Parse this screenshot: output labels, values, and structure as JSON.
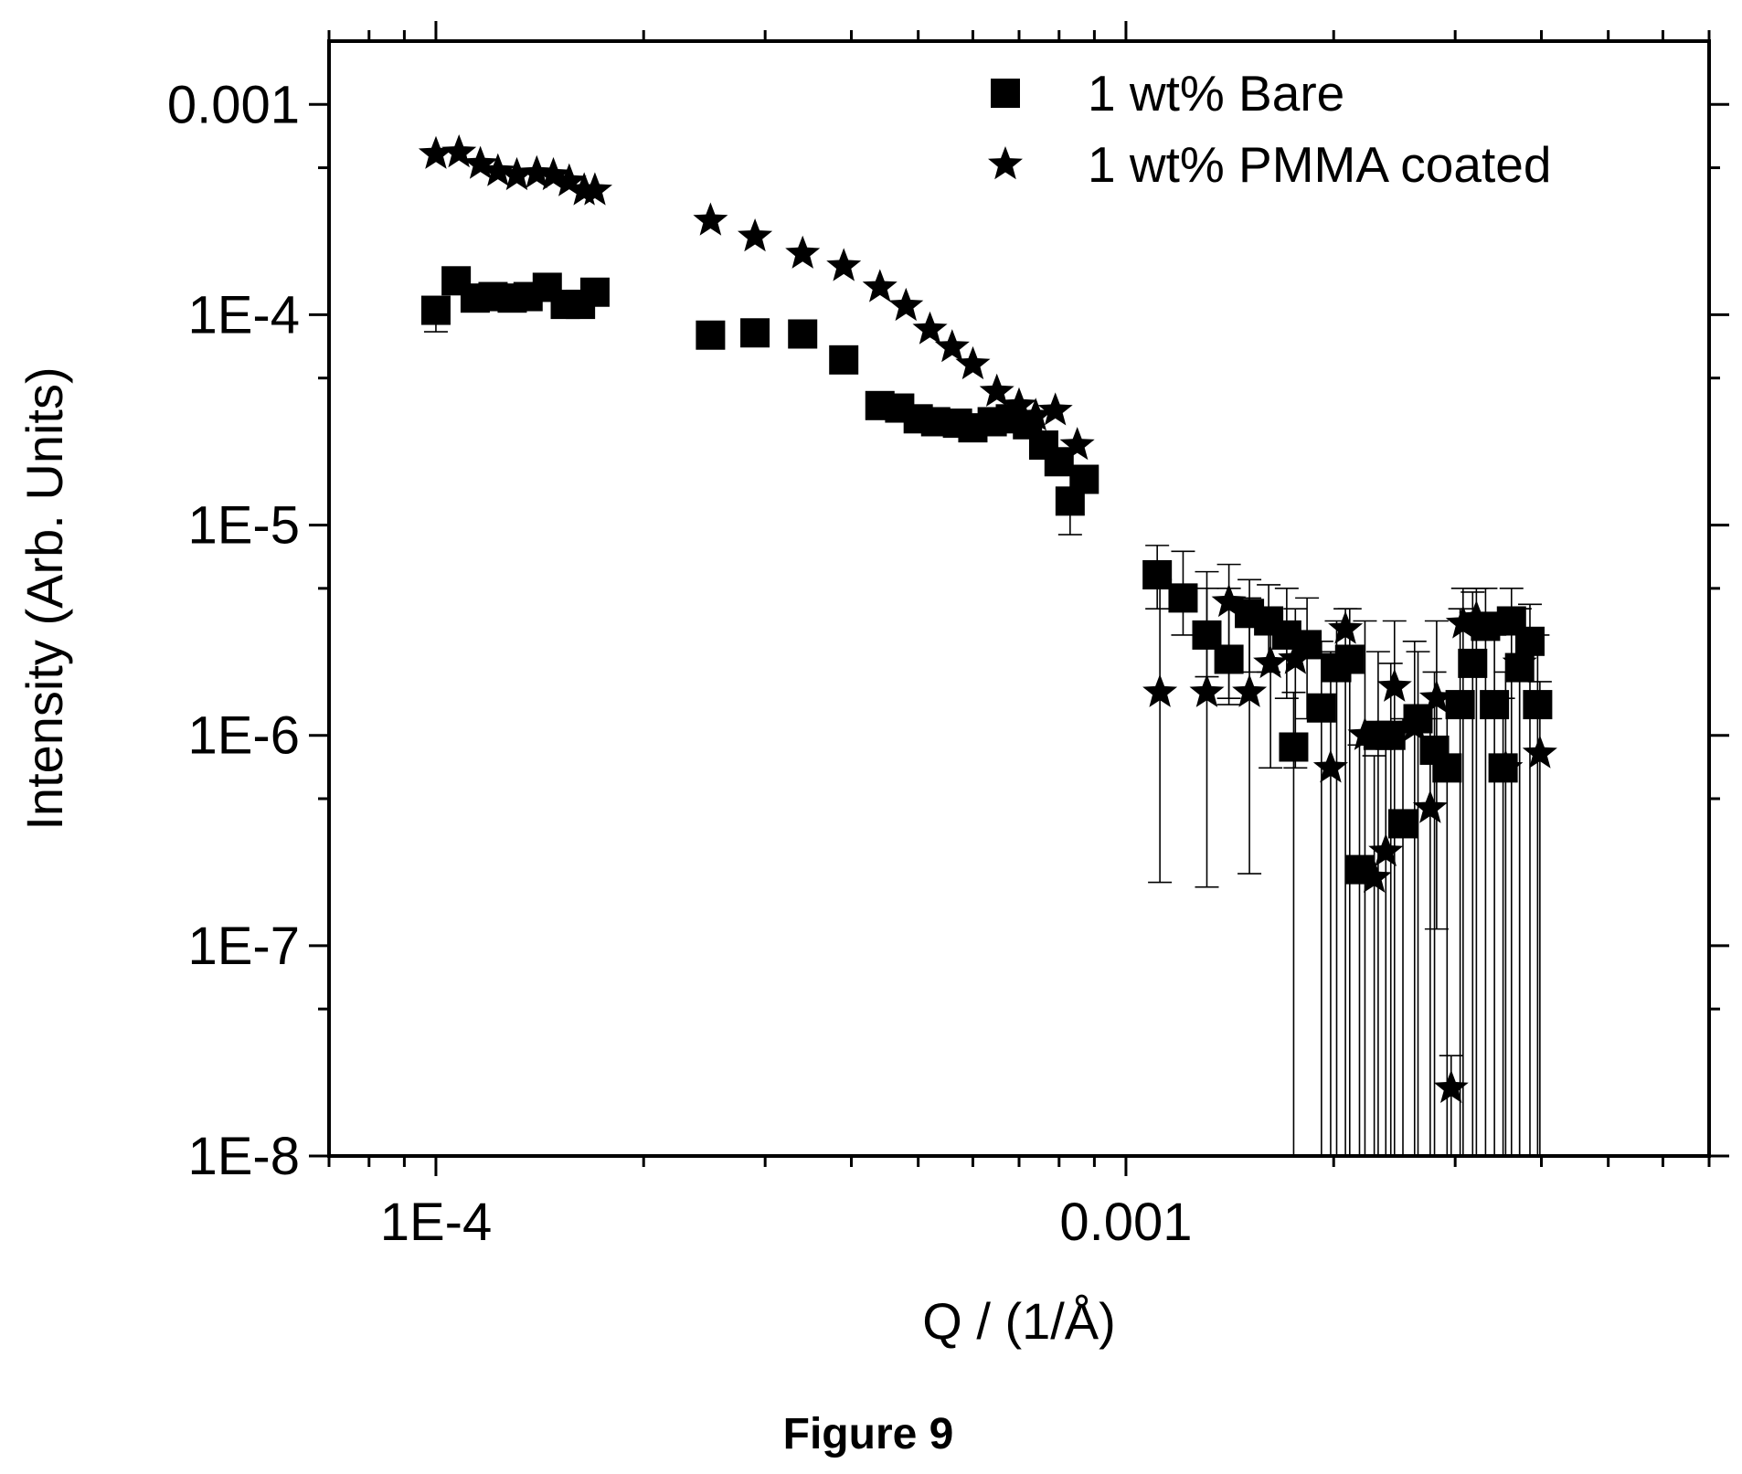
{
  "caption": "Figure 9",
  "chart_data": {
    "type": "scatter",
    "title": "",
    "xlabel": "Q / (1/Å)",
    "ylabel": "Intensity (Arb. Units)",
    "xscale": "log",
    "yscale": "log",
    "xlim": [
      7e-05,
      0.007
    ],
    "ylim": [
      1e-08,
      0.002
    ],
    "xticks": [
      {
        "value": 0.0001,
        "label": "1E-4"
      },
      {
        "value": 0.001,
        "label": "0.001"
      }
    ],
    "yticks": [
      {
        "value": 0.001,
        "label": "0.001"
      },
      {
        "value": 0.0001,
        "label": "1E-4"
      },
      {
        "value": 1e-05,
        "label": "1E-5"
      },
      {
        "value": 1e-06,
        "label": "1E-6"
      },
      {
        "value": 1e-07,
        "label": "1E-7"
      },
      {
        "value": 1e-08,
        "label": "1E-8"
      }
    ],
    "legend_position": "top-right",
    "series": [
      {
        "name": "1 wt% Bare",
        "marker": "square",
        "color": "#000000",
        "points": [
          {
            "x": 0.0001,
            "y": 0.000105,
            "lo": 8.3e-05,
            "hi": 0.00011
          },
          {
            "x": 0.000107,
            "y": 0.000145
          },
          {
            "x": 0.000114,
            "y": 0.00012
          },
          {
            "x": 0.000121,
            "y": 0.000122
          },
          {
            "x": 0.000129,
            "y": 0.00012
          },
          {
            "x": 0.000136,
            "y": 0.000122
          },
          {
            "x": 0.000145,
            "y": 0.000135
          },
          {
            "x": 0.000154,
            "y": 0.000112
          },
          {
            "x": 0.000162,
            "y": 0.000112
          },
          {
            "x": 0.00017,
            "y": 0.000128
          },
          {
            "x": 0.00025,
            "y": 8e-05
          },
          {
            "x": 0.00029,
            "y": 8.2e-05
          },
          {
            "x": 0.00034,
            "y": 8.1e-05
          },
          {
            "x": 0.00039,
            "y": 6.1e-05
          },
          {
            "x": 0.00044,
            "y": 3.7e-05
          },
          {
            "x": 0.00047,
            "y": 3.6e-05
          },
          {
            "x": 0.0005,
            "y": 3.2e-05
          },
          {
            "x": 0.00053,
            "y": 3.1e-05
          },
          {
            "x": 0.00057,
            "y": 3.05e-05
          },
          {
            "x": 0.0006,
            "y": 2.9e-05
          },
          {
            "x": 0.00064,
            "y": 3.1e-05
          },
          {
            "x": 0.00068,
            "y": 3.2e-05
          },
          {
            "x": 0.00072,
            "y": 3e-05
          },
          {
            "x": 0.00076,
            "y": 2.4e-05
          },
          {
            "x": 0.0008,
            "y": 2e-05
          },
          {
            "x": 0.00083,
            "y": 1.3e-05,
            "lo": 9e-06,
            "hi": 1.5e-05
          },
          {
            "x": 0.00087,
            "y": 1.65e-05
          },
          {
            "x": 0.00111,
            "y": 5.8e-06,
            "lo": 4e-06,
            "hi": 8e-06
          },
          {
            "x": 0.00121,
            "y": 4.5e-06,
            "lo": 3e-06,
            "hi": 7.5e-06
          },
          {
            "x": 0.00131,
            "y": 3e-06,
            "lo": 1.9e-06,
            "hi": 6e-06
          },
          {
            "x": 0.00141,
            "y": 2.3e-06,
            "lo": 1.4e-06,
            "hi": 5e-06
          },
          {
            "x": 0.00151,
            "y": 3.8e-06,
            "lo": 2e-06,
            "hi": 5.5e-06
          },
          {
            "x": 0.00161,
            "y": 3.5e-06,
            "lo": 2e-06,
            "hi": 5.2e-06
          },
          {
            "x": 0.00171,
            "y": 3e-06,
            "lo": 1.5e-06,
            "hi": 5e-06
          },
          {
            "x": 0.00175,
            "y": 8.8e-07,
            "lo": 1e-08,
            "hi": 1.6e-06
          },
          {
            "x": 0.00183,
            "y": 2.7e-06,
            "lo": 1.2e-06,
            "hi": 4.5e-06
          },
          {
            "x": 0.00192,
            "y": 1.35e-06,
            "lo": 1e-08,
            "hi": 2.8e-06
          },
          {
            "x": 0.00202,
            "y": 2.1e-06,
            "lo": 1e-08,
            "hi": 3.5e-06
          },
          {
            "x": 0.00211,
            "y": 2.3e-06,
            "lo": 1e-08,
            "hi": 4e-06
          },
          {
            "x": 0.00218,
            "y": 2.3e-07,
            "lo": 1e-08,
            "hi": 9e-07
          },
          {
            "x": 0.00232,
            "y": 1e-06,
            "lo": 1e-08,
            "hi": 2.5e-06
          },
          {
            "x": 0.00242,
            "y": 1e-06,
            "lo": 1e-08,
            "hi": 2.2e-06
          },
          {
            "x": 0.00252,
            "y": 3.8e-07,
            "lo": 1e-08,
            "hi": 1.2e-06
          },
          {
            "x": 0.00265,
            "y": 1.2e-06,
            "lo": 1e-08,
            "hi": 2.5e-06
          },
          {
            "x": 0.0028,
            "y": 8.5e-07,
            "lo": 1e-08,
            "hi": 2e-06
          },
          {
            "x": 0.00292,
            "y": 7e-07,
            "lo": 1e-08,
            "hi": 1.5e-06
          },
          {
            "x": 0.00305,
            "y": 1.4e-06,
            "lo": 1e-08,
            "hi": 4e-06
          },
          {
            "x": 0.00318,
            "y": 2.2e-06,
            "lo": 1e-08,
            "hi": 4.8e-06
          },
          {
            "x": 0.00332,
            "y": 3.3e-06,
            "lo": 1e-08,
            "hi": 5e-06
          },
          {
            "x": 0.00342,
            "y": 1.4e-06,
            "lo": 1e-08,
            "hi": 3e-06
          },
          {
            "x": 0.00352,
            "y": 7e-07,
            "lo": 1e-08,
            "hi": 1.5e-06
          },
          {
            "x": 0.00362,
            "y": 3.5e-06,
            "lo": 1e-08,
            "hi": 5e-06
          },
          {
            "x": 0.00372,
            "y": 2.1e-06,
            "lo": 1e-08,
            "hi": 4e-06
          },
          {
            "x": 0.00385,
            "y": 2.8e-06,
            "lo": 1e-08,
            "hi": 4.2e-06
          },
          {
            "x": 0.00395,
            "y": 1.4e-06,
            "lo": 1e-08,
            "hi": 3e-06
          }
        ]
      },
      {
        "name": "1 wt% PMMA coated",
        "marker": "star",
        "color": "#000000",
        "points": [
          {
            "x": 0.0001,
            "y": 0.00058
          },
          {
            "x": 0.000108,
            "y": 0.00059
          },
          {
            "x": 0.000116,
            "y": 0.00052
          },
          {
            "x": 0.000123,
            "y": 0.00048
          },
          {
            "x": 0.000131,
            "y": 0.00046
          },
          {
            "x": 0.00014,
            "y": 0.00047
          },
          {
            "x": 0.000148,
            "y": 0.00046
          },
          {
            "x": 0.000156,
            "y": 0.00043
          },
          {
            "x": 0.000164,
            "y": 0.00039
          },
          {
            "x": 0.00017,
            "y": 0.00039
          },
          {
            "x": 0.00025,
            "y": 0.00028
          },
          {
            "x": 0.00029,
            "y": 0.000235
          },
          {
            "x": 0.00034,
            "y": 0.000195
          },
          {
            "x": 0.00039,
            "y": 0.00017
          },
          {
            "x": 0.00044,
            "y": 0.000135
          },
          {
            "x": 0.00048,
            "y": 0.00011
          },
          {
            "x": 0.00052,
            "y": 8.5e-05
          },
          {
            "x": 0.00056,
            "y": 7e-05
          },
          {
            "x": 0.0006,
            "y": 5.8e-05
          },
          {
            "x": 0.00065,
            "y": 4.3e-05
          },
          {
            "x": 0.0007,
            "y": 3.7e-05
          },
          {
            "x": 0.00074,
            "y": 3.3e-05
          },
          {
            "x": 0.00079,
            "y": 3.5e-05
          },
          {
            "x": 0.00085,
            "y": 2.4e-05
          },
          {
            "x": 0.00112,
            "y": 1.6e-06,
            "lo": 2e-07,
            "hi": 5.5e-06
          },
          {
            "x": 0.00131,
            "y": 1.6e-06,
            "lo": 1.9e-07,
            "hi": 5e-06
          },
          {
            "x": 0.00141,
            "y": 4.3e-06,
            "lo": 1.5e-06,
            "hi": 6.5e-06
          },
          {
            "x": 0.00151,
            "y": 1.6e-06,
            "lo": 2.2e-07,
            "hi": 4.5e-06
          },
          {
            "x": 0.00162,
            "y": 2.2e-06,
            "lo": 7e-07,
            "hi": 4e-06
          },
          {
            "x": 0.00176,
            "y": 2.3e-06,
            "lo": 7e-07,
            "hi": 4e-06
          },
          {
            "x": 0.00198,
            "y": 7e-07,
            "lo": 1e-08,
            "hi": 2.5e-06
          },
          {
            "x": 0.00208,
            "y": 3.2e-06,
            "lo": 1e-08,
            "hi": 4e-06
          },
          {
            "x": 0.00222,
            "y": 1e-06,
            "lo": 1e-08,
            "hi": 3.5e-06
          },
          {
            "x": 0.00229,
            "y": 2.1e-07,
            "lo": 1e-08,
            "hi": 8e-07
          },
          {
            "x": 0.00238,
            "y": 2.8e-07,
            "lo": 1e-08,
            "hi": 1e-06
          },
          {
            "x": 0.00245,
            "y": 1.7e-06,
            "lo": 1e-08,
            "hi": 3.5e-06
          },
          {
            "x": 0.00262,
            "y": 1.1e-06,
            "lo": 1e-08,
            "hi": 2.8e-06
          },
          {
            "x": 0.00276,
            "y": 4.5e-07,
            "lo": 1e-08,
            "hi": 1.2e-06
          },
          {
            "x": 0.00282,
            "y": 1.5e-06,
            "lo": 1.2e-07,
            "hi": 3.5e-06
          },
          {
            "x": 0.00296,
            "y": 2.1e-08,
            "lo": 1e-08,
            "hi": 3e-08
          },
          {
            "x": 0.00308,
            "y": 3.4e-06,
            "lo": 1e-08,
            "hi": 5e-06
          },
          {
            "x": 0.00322,
            "y": 3.6e-06,
            "lo": 1e-08,
            "hi": 5e-06
          },
          {
            "x": 0.00355,
            "y": 7e-07,
            "lo": 1e-08,
            "hi": 2e-06
          },
          {
            "x": 0.00372,
            "y": 2.2e-06,
            "lo": 1e-08,
            "hi": 4e-06
          },
          {
            "x": 0.00398,
            "y": 8.2e-07,
            "lo": 1e-08,
            "hi": 1.8e-06
          }
        ]
      }
    ]
  }
}
